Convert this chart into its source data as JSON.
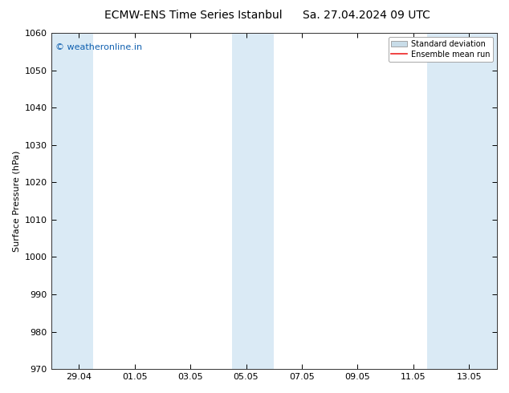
{
  "title_left": "ECMW-ENS Time Series Istanbul",
  "title_right": "Sa. 27.04.2024 09 UTC",
  "ylabel": "Surface Pressure (hPa)",
  "ylim": [
    970,
    1060
  ],
  "yticks": [
    970,
    980,
    990,
    1000,
    1010,
    1020,
    1030,
    1040,
    1050,
    1060
  ],
  "xlim_start": 0,
  "xlim_end": 16,
  "xtick_labels": [
    "29.04",
    "01.05",
    "03.05",
    "05.05",
    "07.05",
    "09.05",
    "11.05",
    "13.05"
  ],
  "xtick_positions": [
    1.0,
    3.0,
    5.0,
    7.0,
    9.0,
    11.0,
    13.0,
    15.0
  ],
  "shaded_bands": [
    {
      "x_start": 0.0,
      "x_end": 1.5,
      "color": "#daeaf5"
    },
    {
      "x_start": 6.5,
      "x_end": 7.5,
      "color": "#daeaf5"
    },
    {
      "x_start": 7.5,
      "x_end": 8.0,
      "color": "#daeaf5"
    },
    {
      "x_start": 13.5,
      "x_end": 16.0,
      "color": "#daeaf5"
    }
  ],
  "watermark_text": "© weatheronline.in",
  "watermark_color": "#1060b0",
  "bg_color": "#ffffff",
  "grid_color": "#dddddd",
  "legend_std_color": "#c8dce8",
  "legend_mean_color": "#ee2222",
  "title_fontsize": 10,
  "label_fontsize": 8,
  "tick_fontsize": 8,
  "watermark_fontsize": 8
}
